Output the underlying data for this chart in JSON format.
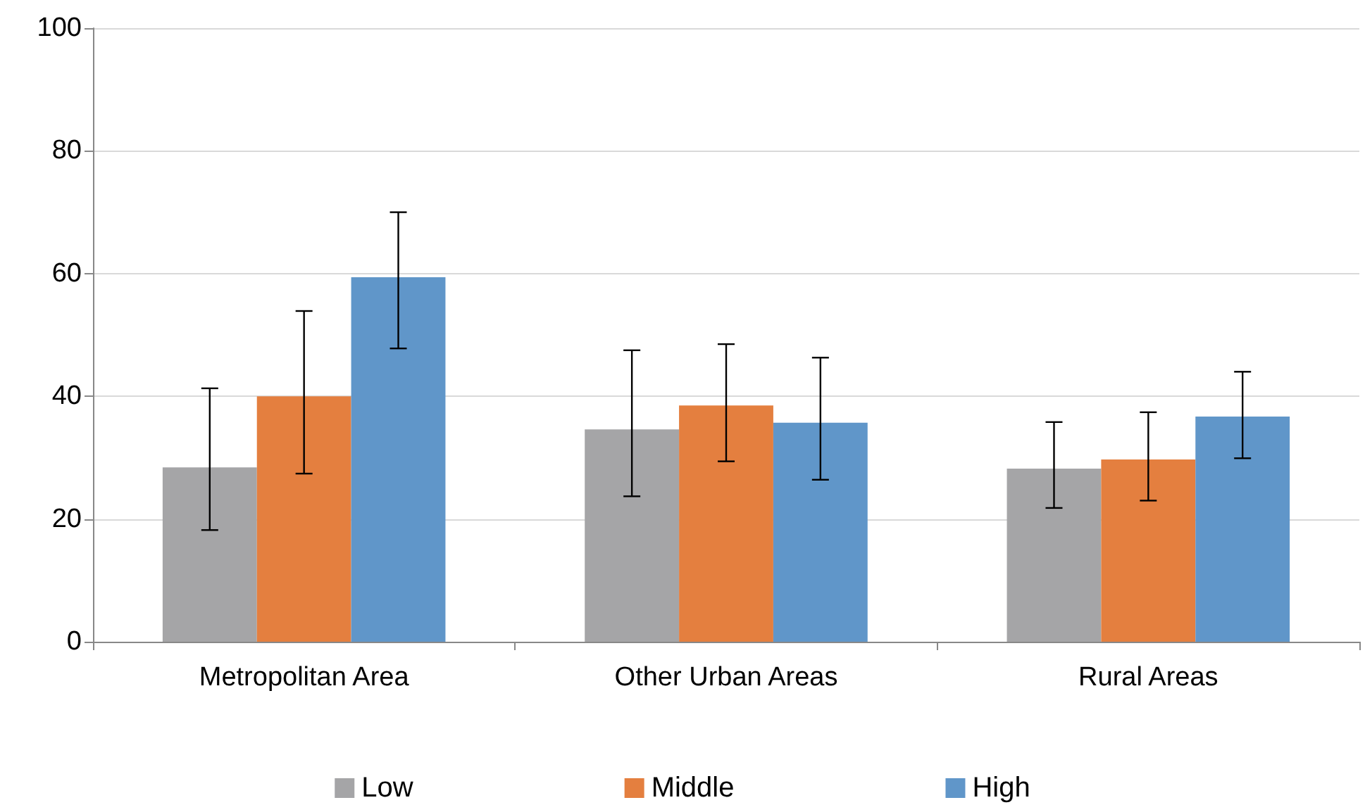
{
  "chart_data": {
    "type": "bar",
    "categories": [
      "Metropolitan Area",
      "Other Urban Areas",
      "Rural Areas"
    ],
    "series": [
      {
        "name": "Low",
        "color": "#a5a5a7",
        "values": [
          28.4,
          34.6,
          28.2
        ],
        "errors": [
          [
            18.2,
            41.3
          ],
          [
            23.7,
            47.5
          ],
          [
            21.8,
            35.8
          ]
        ]
      },
      {
        "name": "Middle",
        "color": "#e47f3f",
        "values": [
          40,
          38.5,
          29.7
        ],
        "errors": [
          [
            27.4,
            53.9
          ],
          [
            29.4,
            48.5
          ],
          [
            23.0,
            37.4
          ]
        ]
      },
      {
        "name": "High",
        "color": "#6096c9",
        "values": [
          59.4,
          35.7,
          36.7
        ],
        "errors": [
          [
            47.8,
            70.0
          ],
          [
            26.4,
            46.3
          ],
          [
            29.9,
            44.0
          ]
        ]
      }
    ],
    "ylim": [
      0,
      100
    ],
    "yticks": [
      0,
      20,
      40,
      60,
      80,
      100
    ],
    "grid": "y",
    "legend": "bottom"
  }
}
